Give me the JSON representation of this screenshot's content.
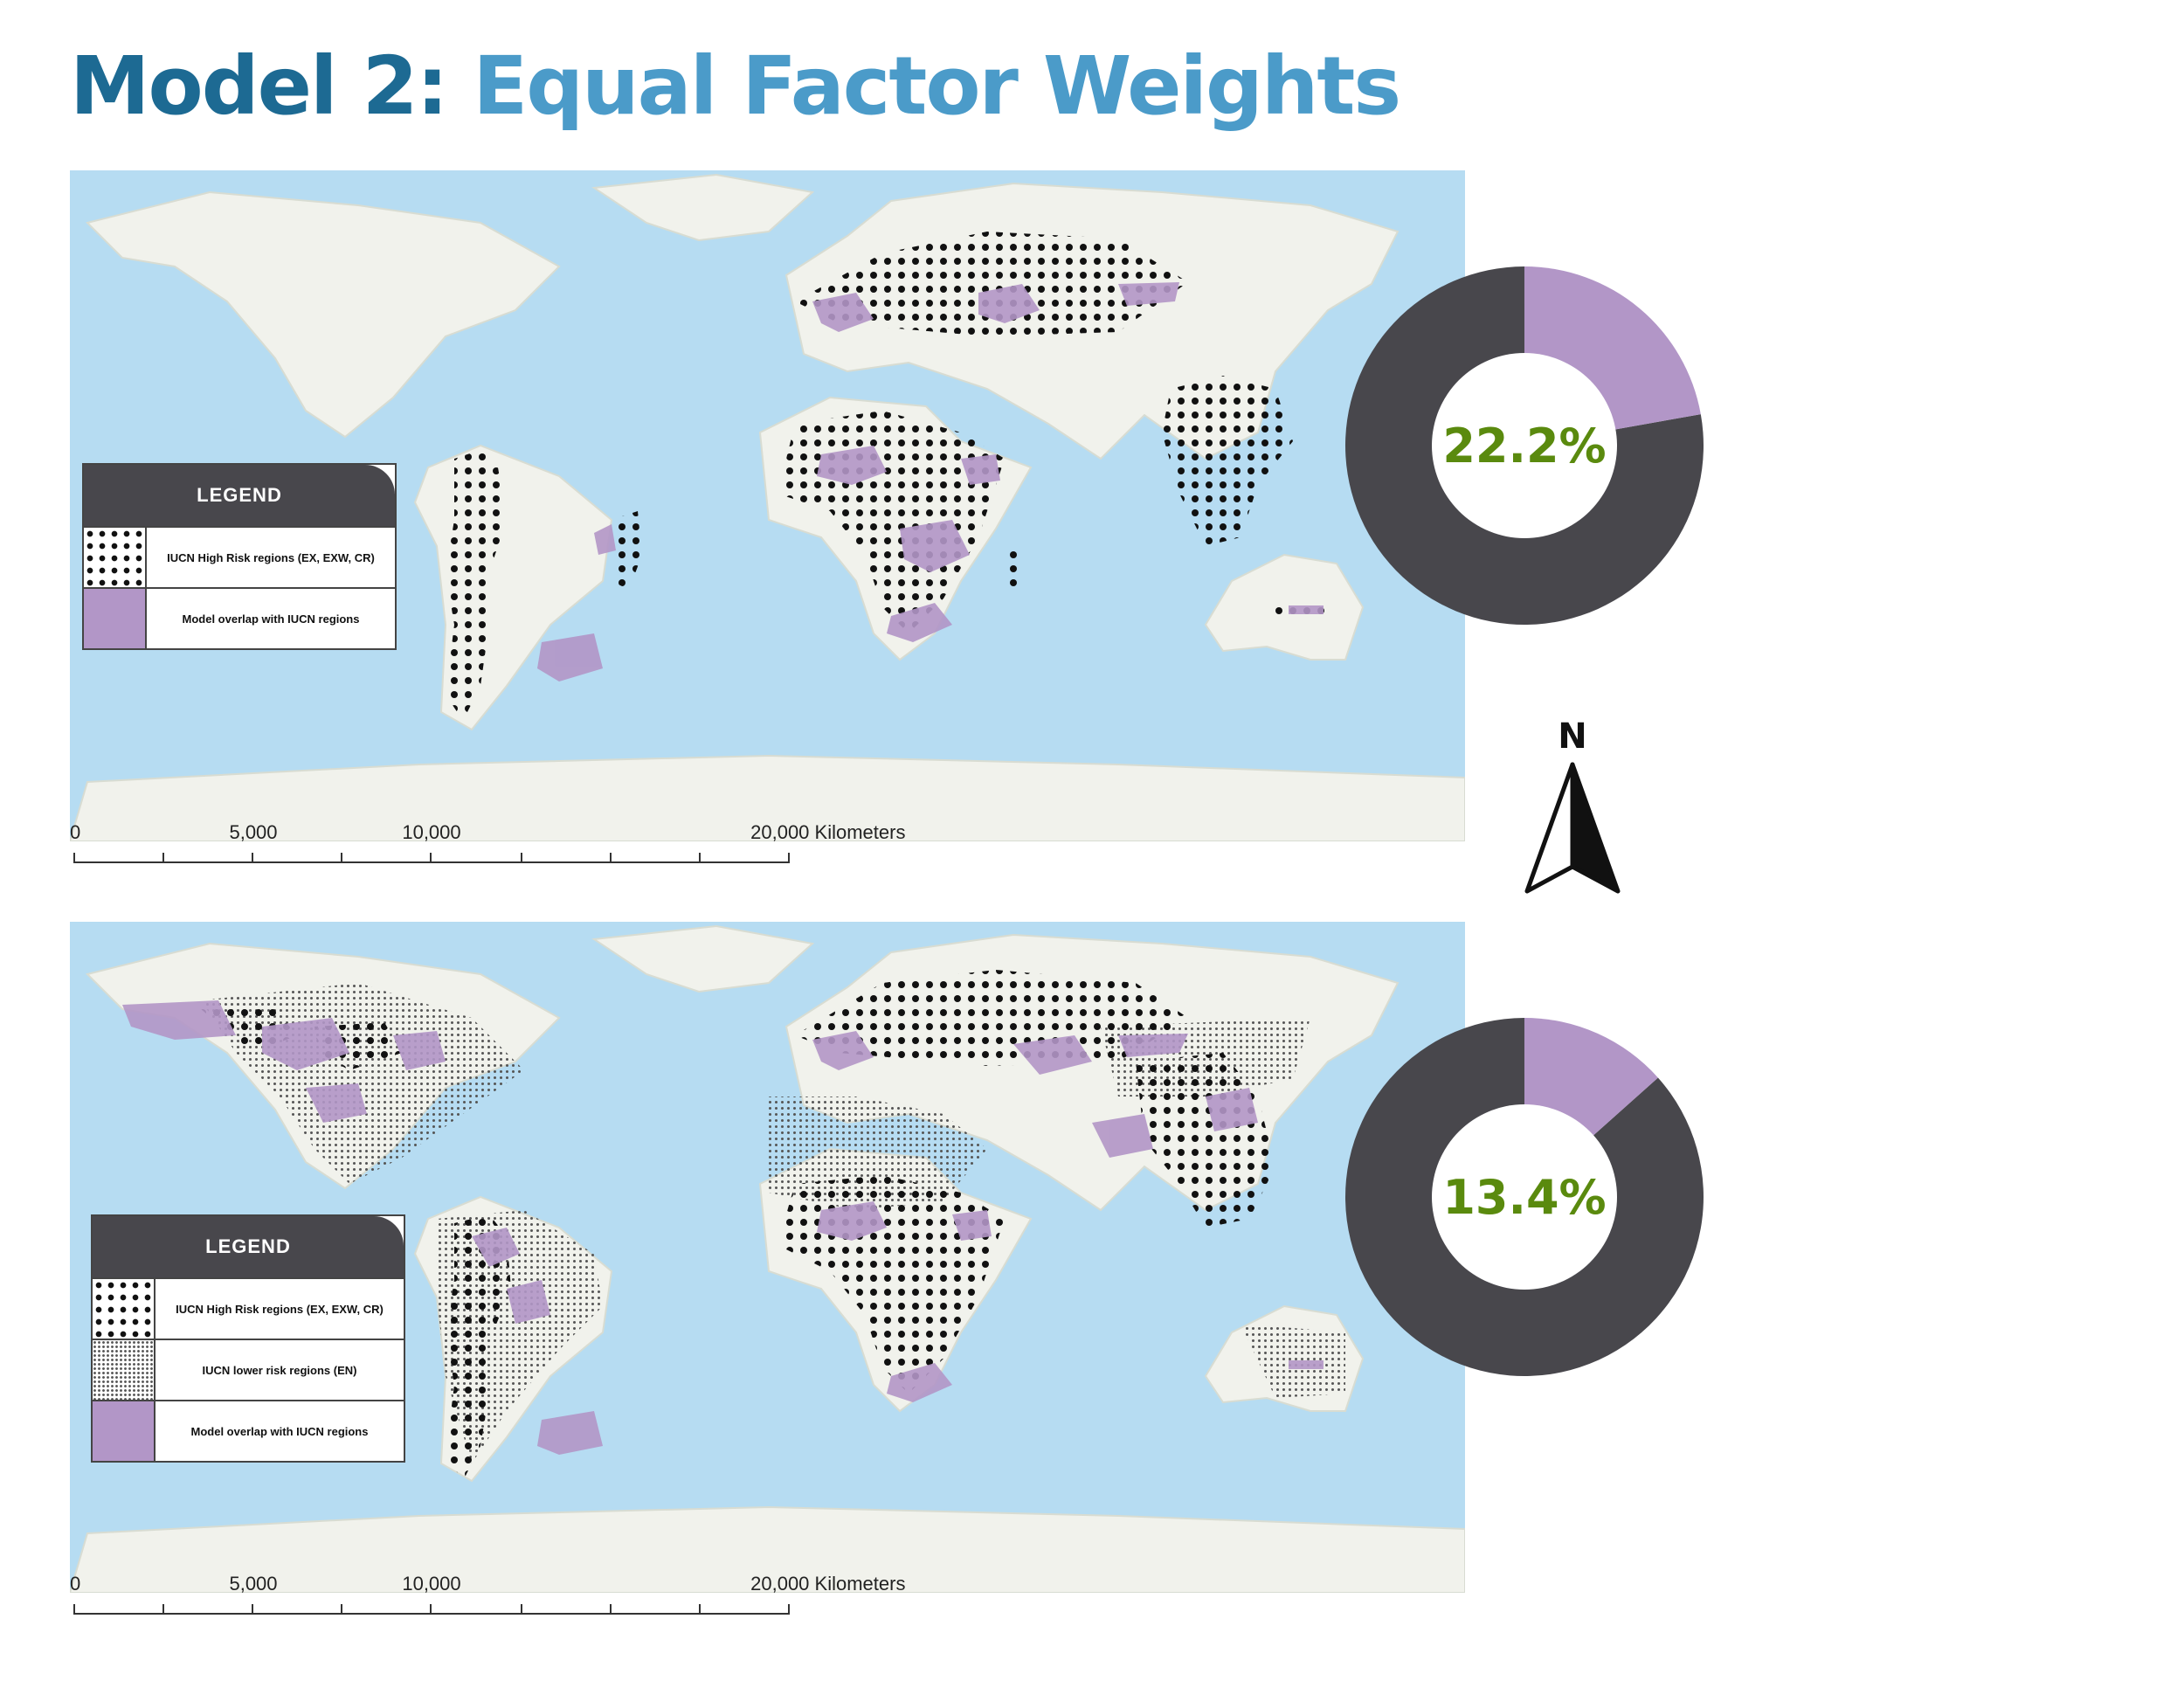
{
  "title": {
    "main": "Model 2:",
    "sub": "Equal Factor Weights"
  },
  "colors": {
    "ocean": "#b6dcf2",
    "land": "#f1f2ec",
    "overlap": "#b296c7",
    "donut_dark": "#48474c",
    "donut_light": "#b296c7",
    "percent_text": "#5a8a0e"
  },
  "maps": [
    {
      "legend": {
        "title": "LEGEND",
        "items": [
          {
            "swatch": "high-risk-dots",
            "label": "IUCN High Risk regions (EX, EXW, CR)"
          },
          {
            "swatch": "overlap-purple",
            "label": "Model overlap with IUCN regions"
          }
        ]
      },
      "scale": {
        "labels": [
          "0",
          "5,000",
          "10,000",
          "20,000 Kilometers"
        ]
      }
    },
    {
      "legend": {
        "title": "LEGEND",
        "items": [
          {
            "swatch": "high-risk-dots",
            "label": "IUCN High Risk regions (EX, EXW, CR)"
          },
          {
            "swatch": "lower-risk-dots",
            "label": "IUCN lower risk regions (EN)"
          },
          {
            "swatch": "overlap-purple",
            "label": "Model overlap with IUCN regions"
          }
        ]
      },
      "scale": {
        "labels": [
          "0",
          "5,000",
          "10,000",
          "20,000 Kilometers"
        ]
      }
    }
  ],
  "donuts": [
    {
      "percent_label": "22.2%",
      "fraction": 0.222
    },
    {
      "percent_label": "13.4%",
      "fraction": 0.134
    }
  ],
  "north_arrow": {
    "label": "N"
  }
}
